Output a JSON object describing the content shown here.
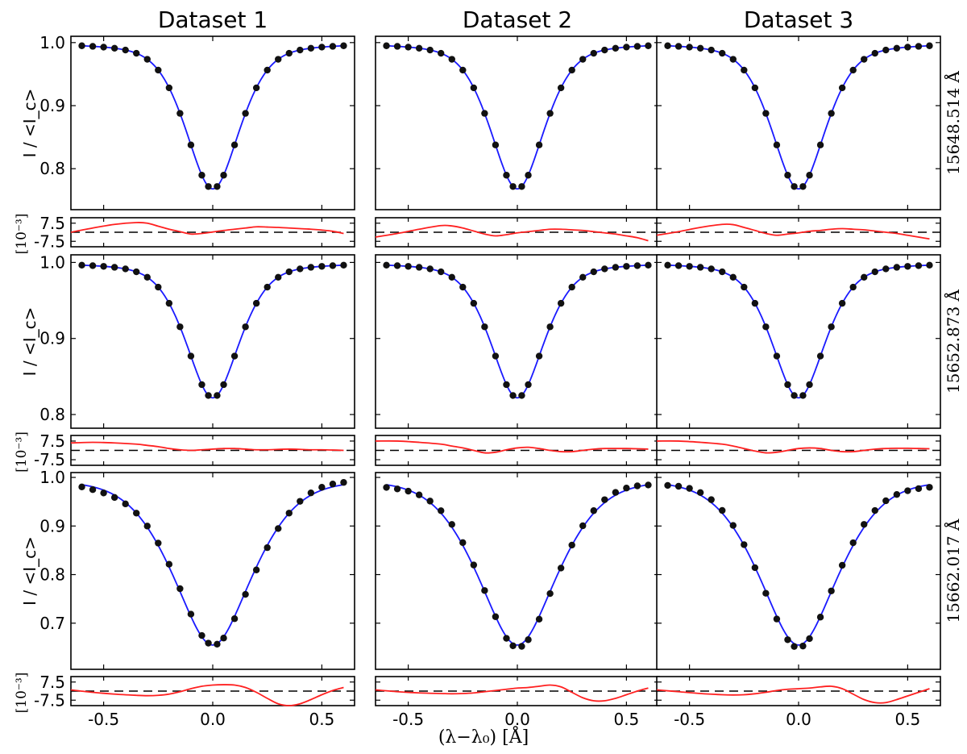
{
  "chart_data": {
    "type": "line",
    "columns": [
      "Dataset 1",
      "Dataset 2",
      "Dataset 3"
    ],
    "rows": [
      "15648.514 Å",
      "15652.873 Å",
      "15662.017 Å"
    ],
    "xlabel": "(λ−λ₀) [Å]",
    "ylabel_main": "I / <I_c>",
    "ylabel_resid": "[10⁻³]",
    "x_ticks": [
      "-0.5",
      "0.0",
      "0.5"
    ],
    "x_tick_values": [
      -0.5,
      0.0,
      0.5
    ],
    "xlim": [
      -0.65,
      0.65
    ],
    "data_x_range": [
      -0.6,
      0.6
    ],
    "series_style": {
      "observed": "black dots",
      "fit": "blue line",
      "residual": "red line",
      "zero": "black dashed line"
    },
    "resid_ticks": [
      "7.5",
      "-7.5"
    ],
    "resid_ylim": [
      -12,
      12
    ],
    "line_params": [
      {
        "depth": 0.232,
        "sigma": 0.13,
        "gamma": 0.135,
        "ylim": [
          0.735,
          1.01
        ],
        "y_ticks": [
          "1.0",
          "0.9",
          "0.8"
        ],
        "y_tick_values": [
          1.0,
          0.9,
          0.8
        ]
      },
      {
        "depth": 0.178,
        "sigma": 0.13,
        "gamma": 0.13,
        "ylim": [
          0.782,
          1.01
        ],
        "y_ticks": [
          "1.0",
          "0.9",
          "0.8"
        ],
        "y_tick_values": [
          1.0,
          0.9,
          0.8
        ]
      },
      {
        "depth": 0.345,
        "sigma": 0.2,
        "gamma": 0.18,
        "ylim": [
          0.605,
          1.01
        ],
        "y_ticks": [
          "1.0",
          "0.9",
          "0.8",
          "0.7"
        ],
        "y_tick_values": [
          1.0,
          0.9,
          0.8,
          0.7
        ]
      }
    ],
    "residuals": {
      "x": [
        -0.65,
        -0.55,
        -0.45,
        -0.35,
        -0.3,
        -0.25,
        -0.2,
        -0.15,
        -0.1,
        -0.05,
        0.0,
        0.05,
        0.1,
        0.15,
        0.2,
        0.25,
        0.3,
        0.35,
        0.4,
        0.45,
        0.5,
        0.55,
        0.6
      ],
      "values": [
        [
          [
            0.0,
            3.5,
            6.5,
            8.0,
            7.5,
            5.0,
            2.5,
            0.5,
            -1.5,
            -1.0,
            0.2,
            1.5,
            2.5,
            3.5,
            4.5,
            4.3,
            4.0,
            3.5,
            3.0,
            2.5,
            1.8,
            0.8,
            -1.0
          ],
          [
            -4.0,
            -1.0,
            2.5,
            5.5,
            5.2,
            3.5,
            1.0,
            -1.5,
            -3.0,
            -2.0,
            -0.5,
            0.5,
            1.5,
            2.5,
            2.5,
            2.0,
            1.5,
            0.5,
            -0.5,
            -1.5,
            -3.0,
            -4.5,
            -7.0
          ],
          [
            -2.5,
            0.5,
            4.0,
            6.5,
            6.3,
            4.0,
            1.5,
            -1.0,
            -2.5,
            -1.5,
            -0.5,
            0.8,
            1.5,
            2.5,
            3.0,
            2.5,
            2.0,
            1.0,
            0.0,
            -1.0,
            -2.5,
            -4.0,
            -5.5
          ]
        ],
        [
          [
            6.0,
            6.5,
            6.0,
            5.0,
            4.0,
            3.0,
            1.5,
            0.5,
            0.0,
            0.5,
            1.0,
            1.5,
            1.5,
            1.0,
            0.5,
            0.5,
            0.8,
            1.0,
            0.8,
            0.5,
            0.5,
            0.3,
            0.0
          ],
          [
            7.5,
            7.5,
            6.5,
            5.0,
            3.5,
            2.0,
            0.0,
            -2.0,
            -1.5,
            0.5,
            2.0,
            2.5,
            1.5,
            0.0,
            -1.0,
            -1.0,
            0.0,
            1.0,
            1.5,
            1.5,
            1.5,
            1.3,
            1.0
          ],
          [
            7.5,
            7.5,
            6.5,
            5.0,
            3.5,
            1.5,
            -0.5,
            -2.0,
            -1.5,
            0.0,
            1.5,
            2.0,
            1.5,
            0.0,
            -1.0,
            -1.0,
            0.0,
            1.0,
            1.5,
            1.7,
            1.7,
            1.5,
            1.3
          ]
        ],
        [
          [
            1.0,
            -1.0,
            -2.5,
            -3.5,
            -3.8,
            -3.5,
            -2.5,
            -0.5,
            2.0,
            4.0,
            5.0,
            5.3,
            5.0,
            3.0,
            -1.0,
            -6.0,
            -10.5,
            -12.0,
            -10.5,
            -7.0,
            -3.0,
            0.5,
            3.0
          ],
          [
            1.0,
            -0.5,
            -1.5,
            -2.0,
            -2.2,
            -2.0,
            -1.5,
            -0.5,
            0.5,
            1.5,
            2.5,
            3.0,
            4.0,
            5.0,
            3.5,
            -1.0,
            -5.5,
            -8.0,
            -8.0,
            -6.0,
            -3.0,
            0.0,
            2.5
          ],
          [
            1.0,
            -0.5,
            -2.0,
            -3.0,
            -3.2,
            -3.0,
            -2.2,
            -1.0,
            0.5,
            1.5,
            2.0,
            2.5,
            3.5,
            4.0,
            2.0,
            -2.5,
            -7.0,
            -9.5,
            -9.5,
            -7.0,
            -4.0,
            -1.0,
            2.0
          ]
        ]
      ]
    },
    "dot_x": [
      -0.6,
      -0.55,
      -0.5,
      -0.45,
      -0.4,
      -0.35,
      -0.3,
      -0.25,
      -0.2,
      -0.15,
      -0.1,
      -0.05,
      -0.02,
      0.02,
      0.05,
      0.1,
      0.15,
      0.2,
      0.25,
      0.3,
      0.35,
      0.4,
      0.45,
      0.5,
      0.55,
      0.6
    ]
  }
}
